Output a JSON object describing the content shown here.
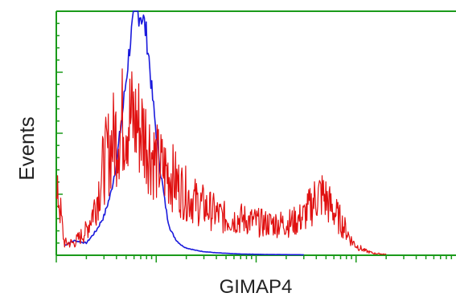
{
  "chart_data": {
    "type": "line",
    "title": "",
    "xlabel": "GIMAP4",
    "ylabel": "Events",
    "x_scale": "log",
    "xlim": [
      1,
      10000
    ],
    "ylim": [
      0,
      1
    ],
    "grid": false,
    "legend": "none",
    "axis_color": "#1a9a1a",
    "series": [
      {
        "color": "#1a1adc",
        "x": [
          1.2,
          1.5,
          2,
          2.5,
          3,
          3.5,
          4,
          4.5,
          5,
          5.5,
          6,
          6.5,
          7,
          7.5,
          8,
          8.5,
          9,
          10,
          11,
          12,
          13,
          14,
          16,
          18,
          20,
          25,
          30,
          40,
          50,
          70,
          100,
          150,
          300
        ],
        "values": [
          0.04,
          0.06,
          0.05,
          0.1,
          0.16,
          0.25,
          0.38,
          0.55,
          0.72,
          0.88,
          0.97,
          1.0,
          0.99,
          0.96,
          0.9,
          0.8,
          0.68,
          0.5,
          0.35,
          0.24,
          0.15,
          0.1,
          0.06,
          0.04,
          0.03,
          0.02,
          0.015,
          0.01,
          0.008,
          0.005,
          0.004,
          0.003,
          0.002
        ]
      },
      {
        "color": "#e01010",
        "x": [
          1.0,
          1.05,
          1.2,
          1.5,
          2,
          2.5,
          3,
          3.5,
          4,
          4.5,
          5,
          5.5,
          6,
          7,
          8,
          9,
          10,
          12,
          14,
          17,
          20,
          25,
          30,
          40,
          50,
          70,
          90,
          120,
          150,
          200,
          250,
          300,
          350,
          400,
          450,
          500,
          550,
          600,
          700,
          800,
          900,
          1000,
          1200,
          1500,
          2000
        ],
        "values": [
          0.2,
          0.25,
          0.05,
          0.05,
          0.1,
          0.22,
          0.37,
          0.45,
          0.5,
          0.54,
          0.58,
          0.56,
          0.55,
          0.52,
          0.48,
          0.42,
          0.38,
          0.35,
          0.33,
          0.28,
          0.25,
          0.22,
          0.2,
          0.17,
          0.15,
          0.15,
          0.14,
          0.13,
          0.13,
          0.13,
          0.14,
          0.16,
          0.2,
          0.24,
          0.25,
          0.23,
          0.2,
          0.18,
          0.14,
          0.1,
          0.06,
          0.04,
          0.02,
          0.008,
          0.004
        ]
      }
    ]
  }
}
